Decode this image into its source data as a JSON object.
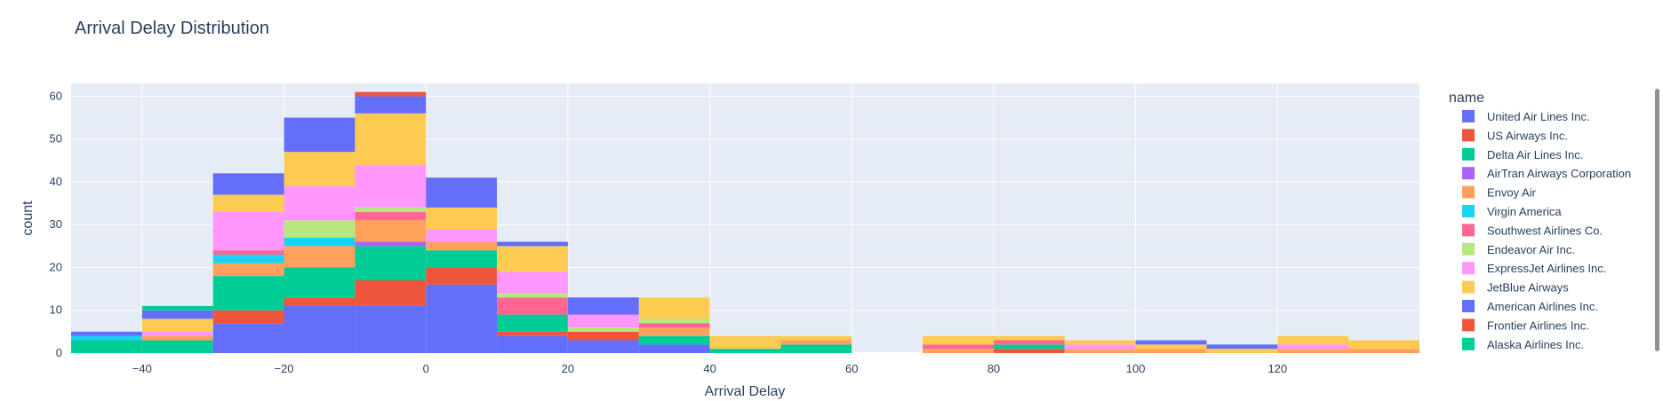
{
  "chart_data": {
    "type": "bar",
    "stacked": true,
    "title": "Arrival Delay Distribution",
    "xlabel": "Arrival Delay",
    "ylabel": "count",
    "legend_title": "name",
    "legend_position": "right",
    "grid": true,
    "xlim": [
      -50,
      140
    ],
    "ylim": [
      0,
      63
    ],
    "x_ticks": [
      -40,
      -20,
      0,
      20,
      40,
      60,
      80,
      100,
      120
    ],
    "y_ticks": [
      0,
      10,
      20,
      30,
      40,
      50,
      60
    ],
    "bin_starts": [
      -50,
      -40,
      -30,
      -20,
      -10,
      0,
      10,
      20,
      30,
      40,
      50,
      60,
      70,
      80,
      90,
      100,
      110,
      120,
      130
    ],
    "bin_width": 10,
    "series": [
      {
        "name": "United Air Lines Inc.",
        "color": "#636efa",
        "values": [
          0,
          0,
          7,
          11,
          11,
          16,
          4,
          3,
          2,
          0,
          0,
          0,
          0,
          0,
          0,
          0,
          0,
          0,
          0
        ]
      },
      {
        "name": "US Airways Inc.",
        "color": "#EF553B",
        "values": [
          0,
          0,
          3,
          2,
          6,
          4,
          1,
          2,
          0,
          0,
          0,
          0,
          0,
          1,
          0,
          0,
          0,
          0,
          0
        ]
      },
      {
        "name": "Delta Air Lines Inc.",
        "color": "#00cc96",
        "values": [
          3,
          3,
          8,
          7,
          8,
          4,
          4,
          0,
          2,
          1,
          2,
          0,
          0,
          1,
          0,
          0,
          0,
          0,
          0
        ]
      },
      {
        "name": "AirTran Airways Corporation",
        "color": "#ab63fa",
        "values": [
          0,
          0,
          0,
          0,
          1,
          0,
          0,
          0,
          0,
          0,
          0,
          0,
          0,
          0,
          0,
          0,
          0,
          0,
          0
        ]
      },
      {
        "name": "Envoy Air",
        "color": "#FFA15A",
        "values": [
          0,
          1,
          3,
          5,
          5,
          2,
          0,
          0,
          2,
          0,
          1,
          0,
          1,
          0,
          1,
          1,
          0,
          1,
          1
        ]
      },
      {
        "name": "Virgin America",
        "color": "#19d3f3",
        "values": [
          1,
          0,
          2,
          2,
          0,
          0,
          0,
          0,
          0,
          0,
          0,
          0,
          0,
          0,
          0,
          0,
          0,
          0,
          0
        ]
      },
      {
        "name": "Southwest Airlines Co.",
        "color": "#FF6692",
        "values": [
          0,
          0,
          1,
          0,
          2,
          0,
          4,
          0,
          1,
          0,
          0,
          0,
          1,
          1,
          0,
          0,
          0,
          0,
          0
        ]
      },
      {
        "name": "Endeavor Air Inc.",
        "color": "#B6E880",
        "values": [
          0,
          0,
          0,
          4,
          1,
          0,
          1,
          1,
          1,
          0,
          0,
          0,
          0,
          0,
          0,
          0,
          0,
          0,
          0
        ]
      },
      {
        "name": "ExpressJet Airlines Inc.",
        "color": "#FF97FF",
        "values": [
          0,
          1,
          9,
          8,
          10,
          3,
          5,
          3,
          0,
          0,
          0,
          0,
          0,
          0,
          1,
          0,
          0,
          1,
          0
        ]
      },
      {
        "name": "JetBlue Airways",
        "color": "#FECB52",
        "values": [
          0,
          3,
          4,
          8,
          12,
          5,
          6,
          0,
          5,
          3,
          1,
          0,
          2,
          1,
          1,
          1,
          1,
          2,
          2
        ]
      },
      {
        "name": "American Airlines Inc.",
        "color": "#636efa",
        "values": [
          1,
          2,
          5,
          8,
          4,
          7,
          1,
          4,
          0,
          0,
          0,
          0,
          0,
          0,
          0,
          1,
          1,
          0,
          0
        ]
      },
      {
        "name": "Frontier Airlines Inc.",
        "color": "#EF553B",
        "values": [
          0,
          0,
          0,
          0,
          1,
          0,
          0,
          0,
          0,
          0,
          0,
          0,
          0,
          0,
          0,
          0,
          0,
          0,
          0
        ]
      },
      {
        "name": "Alaska Airlines Inc.",
        "color": "#00cc96",
        "values": [
          0,
          1,
          0,
          0,
          0,
          0,
          0,
          0,
          0,
          0,
          0,
          0,
          0,
          0,
          0,
          0,
          0,
          0,
          0
        ]
      }
    ]
  }
}
